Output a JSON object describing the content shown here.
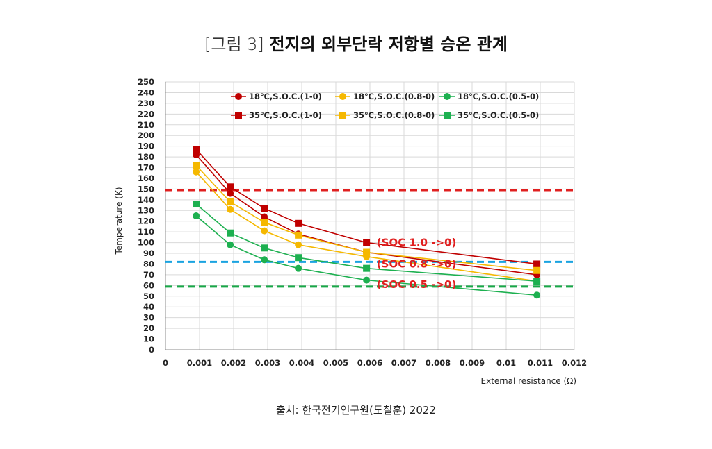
{
  "figure": {
    "caption_tag": "[그림 3]",
    "caption_title": "전지의 외부단락 저항별 승온 관계",
    "source": "출처: 한국전기연구원(도칠훈) 2022"
  },
  "chart_data": {
    "type": "line",
    "xlabel": "External resistance (Ω)",
    "ylabel": "Temperature (K)",
    "xlim": [
      0,
      0.012
    ],
    "ylim": [
      0,
      250
    ],
    "x_ticks": [
      "0",
      "0.001",
      "0.002",
      "0.003",
      "0.004",
      "0.005",
      "0.006",
      "0.007",
      "0.008",
      "0.009",
      "0.01",
      "0.011",
      "0.012"
    ],
    "y_ticks": [
      0,
      10,
      20,
      30,
      40,
      50,
      60,
      70,
      80,
      90,
      100,
      110,
      120,
      130,
      140,
      150,
      160,
      170,
      180,
      190,
      200,
      210,
      220,
      230,
      240,
      250
    ],
    "grid": true,
    "legend_position": "top",
    "x": [
      0.0009,
      0.0019,
      0.0029,
      0.0039,
      0.0059,
      0.0109
    ],
    "series": [
      {
        "name": "18℃,S.O.C.(1-0)",
        "marker": "circle",
        "color": "#c00000",
        "values": [
          182,
          146,
          124,
          108,
          91,
          70
        ]
      },
      {
        "name": "18℃,S.O.C.(0.8-0)",
        "marker": "circle",
        "color": "#f5b800",
        "values": [
          166,
          131,
          111,
          98,
          87,
          64
        ]
      },
      {
        "name": "18℃,S.O.C.(0.5-0)",
        "marker": "circle",
        "color": "#1db050",
        "values": [
          125,
          98,
          84,
          76,
          65,
          51
        ]
      },
      {
        "name": "35℃,S.O.C.(1-0)",
        "marker": "square",
        "color": "#c00000",
        "values": [
          187,
          152,
          132,
          118,
          100,
          80
        ]
      },
      {
        "name": "35℃,S.O.C.(0.8-0)",
        "marker": "square",
        "color": "#f5b800",
        "values": [
          172,
          138,
          119,
          107,
          91,
          74
        ]
      },
      {
        "name": "35℃,S.O.C.(0.5-0)",
        "marker": "square",
        "color": "#1db050",
        "values": [
          136,
          109,
          95,
          86,
          76,
          64
        ]
      }
    ],
    "reference_lines": [
      {
        "y": 149,
        "color": "#e02020"
      },
      {
        "y": 82,
        "color": "#1aa3e0"
      },
      {
        "y": 59,
        "color": "#18a848"
      }
    ],
    "annotations": [
      {
        "text": "(SOC 1.0 ->0)",
        "x": 0.0062,
        "y": 100,
        "color": "#e02020"
      },
      {
        "text": "(SOC 0.8 ->0)",
        "x": 0.0062,
        "y": 80,
        "color": "#e02020"
      },
      {
        "text": "(SOC 0.5 ->0)",
        "x": 0.0062,
        "y": 61,
        "color": "#e02020"
      }
    ]
  }
}
